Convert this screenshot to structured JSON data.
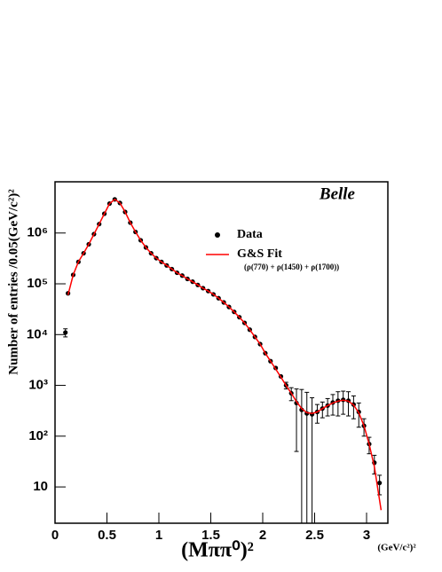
{
  "chart_data": {
    "type": "scatter",
    "annotation": "Belle",
    "xlabel": "(Mππ⁰)²",
    "xunit": "(GeV/c²)²",
    "ylabel": "Number of entries  /0.05(GeV/c²)²",
    "log_y": true,
    "xlim": [
      0,
      3.205
    ],
    "ylim": [
      1.93,
      10200000
    ],
    "xticks": [
      0,
      0.5,
      1,
      1.5,
      2,
      2.5,
      3
    ],
    "yticks": [
      10,
      {
        "value": 100,
        "label": "10²"
      },
      {
        "value": 1000,
        "label": "10³"
      },
      {
        "value": 10000,
        "label": "10⁴"
      },
      {
        "value": 100000,
        "label": "10⁵"
      },
      {
        "value": 1000000,
        "label": "10⁶"
      }
    ],
    "legend_note": "(ρ(770) + ρ(1450) + ρ(1700))",
    "series": [
      {
        "name": "Data",
        "color": "#000000",
        "kind": "points",
        "x": [
          0.1,
          0.125,
          0.175,
          0.225,
          0.275,
          0.325,
          0.375,
          0.425,
          0.475,
          0.525,
          0.575,
          0.625,
          0.675,
          0.725,
          0.775,
          0.825,
          0.875,
          0.925,
          0.975,
          1.025,
          1.075,
          1.125,
          1.175,
          1.225,
          1.275,
          1.325,
          1.375,
          1.425,
          1.475,
          1.525,
          1.575,
          1.625,
          1.675,
          1.725,
          1.775,
          1.825,
          1.875,
          1.925,
          1.975,
          2.025,
          2.075,
          2.125,
          2.175,
          2.225,
          2.275,
          2.325,
          2.375,
          2.425,
          2.475,
          2.525,
          2.575,
          2.625,
          2.675,
          2.725,
          2.775,
          2.825,
          2.875,
          2.925,
          2.975,
          3.025,
          3.075,
          3.125
        ],
        "values": [
          11000,
          65000,
          150000,
          270000,
          400000,
          600000,
          950000,
          1500000,
          2400000,
          3800000,
          4600000,
          3900000,
          2600000,
          1600000,
          1050000,
          720000,
          520000,
          400000,
          320000,
          270000,
          230000,
          195000,
          165000,
          145000,
          125000,
          110000,
          95000,
          82000,
          72000,
          62000,
          52000,
          43000,
          35000,
          28000,
          22000,
          17000,
          12500,
          9000,
          6500,
          4300,
          3000,
          2200,
          1500,
          1000,
          700,
          450,
          330,
          280,
          270,
          300,
          350,
          400,
          460,
          500,
          520,
          500,
          420,
          300,
          160,
          70,
          30,
          12
        ],
        "errors": [
          2000,
          null,
          null,
          null,
          null,
          null,
          null,
          null,
          null,
          null,
          null,
          null,
          null,
          null,
          null,
          null,
          null,
          null,
          null,
          null,
          null,
          null,
          null,
          null,
          null,
          null,
          null,
          null,
          null,
          null,
          null,
          null,
          null,
          null,
          null,
          null,
          null,
          null,
          null,
          null,
          null,
          null,
          null,
          150,
          200,
          400,
          500,
          450,
          300,
          120,
          120,
          150,
          200,
          250,
          250,
          250,
          200,
          150,
          60,
          25,
          12,
          5
        ]
      },
      {
        "name": "G&S Fit",
        "color": "#ff0000",
        "kind": "line",
        "x": [
          0.125,
          0.175,
          0.225,
          0.275,
          0.325,
          0.375,
          0.425,
          0.475,
          0.525,
          0.575,
          0.625,
          0.675,
          0.725,
          0.775,
          0.825,
          0.875,
          0.925,
          0.975,
          1.025,
          1.075,
          1.125,
          1.175,
          1.225,
          1.275,
          1.325,
          1.375,
          1.425,
          1.475,
          1.525,
          1.575,
          1.625,
          1.675,
          1.725,
          1.775,
          1.825,
          1.875,
          1.925,
          1.975,
          2.025,
          2.075,
          2.125,
          2.175,
          2.225,
          2.275,
          2.325,
          2.375,
          2.425,
          2.475,
          2.525,
          2.575,
          2.625,
          2.675,
          2.725,
          2.775,
          2.825,
          2.875,
          2.925,
          2.975,
          3.025,
          3.075,
          3.14
        ],
        "values": [
          60000,
          150000,
          270000,
          400000,
          600000,
          950000,
          1500000,
          2400000,
          3800000,
          4600000,
          3900000,
          2600000,
          1600000,
          1050000,
          720000,
          520000,
          400000,
          320000,
          270000,
          230000,
          195000,
          165000,
          145000,
          125000,
          110000,
          95000,
          82000,
          72000,
          62000,
          52000,
          43000,
          35000,
          28000,
          22000,
          17000,
          12500,
          9000,
          6500,
          4300,
          3000,
          2100,
          1450,
          1000,
          700,
          480,
          350,
          290,
          280,
          300,
          350,
          400,
          450,
          490,
          510,
          490,
          410,
          290,
          160,
          70,
          25,
          3.5
        ]
      }
    ]
  }
}
